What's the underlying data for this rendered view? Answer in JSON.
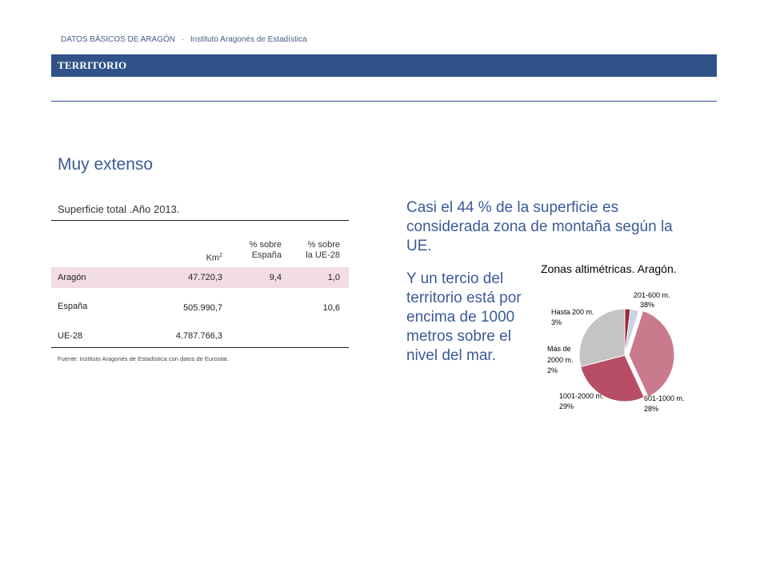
{
  "header": {
    "publication": "DATOS BÁSICOS DE ARAGÓN",
    "separator": "·",
    "institute": "Instituto Aragonés de Estadística",
    "section": "TERRITORIO"
  },
  "subtitle": "Muy extenso",
  "table": {
    "caption": "Superficie total .Año 2013.",
    "headers": {
      "km2": "Km",
      "km2_sup": "2",
      "pct_spain": [
        "% sobre",
        "España"
      ],
      "pct_ue": [
        "% sobre",
        "la UE-28"
      ]
    },
    "rows": [
      {
        "name": "Aragón",
        "km2": "47.720,3",
        "pct_spain": "9,4",
        "pct_ue": "1,0"
      },
      {
        "name": "España",
        "km2": "505.990,7",
        "pct_spain": "",
        "pct_ue": "10,6"
      },
      {
        "name": "UE-28",
        "km2": "4.787.766,3",
        "pct_spain": "",
        "pct_ue": ""
      }
    ],
    "source": "Fuente: Instituto Aragonés de Estadística con datos de  Eurostat."
  },
  "text": {
    "paragraph1": "Casi el 44 % de la superficie es considerada zona de montaña según la UE.",
    "paragraph2": "Y un tercio del territorio está por encima de 1000 metros sobre el nivel del mar."
  },
  "chart_data": {
    "type": "pie",
    "title": "Zonas altimétricas. Aragón.",
    "slices": [
      {
        "label": "201-600 m.",
        "pct_label": "38%",
        "value": 38,
        "color": "#c97a8c"
      },
      {
        "label": "601-1000 m.",
        "pct_label": "28%",
        "value": 28,
        "color": "#b84e66"
      },
      {
        "label": "1001-2000 m.",
        "pct_label": "29%",
        "value": 29,
        "color": "#c4c4c4"
      },
      {
        "label": "Más de 2000 m.",
        "pct_label": "2%",
        "value": 2,
        "color": "#a0283c"
      },
      {
        "label": "Hasta 200 m.",
        "pct_label": "3%",
        "value": 3,
        "color": "#c9d3e6"
      }
    ]
  }
}
